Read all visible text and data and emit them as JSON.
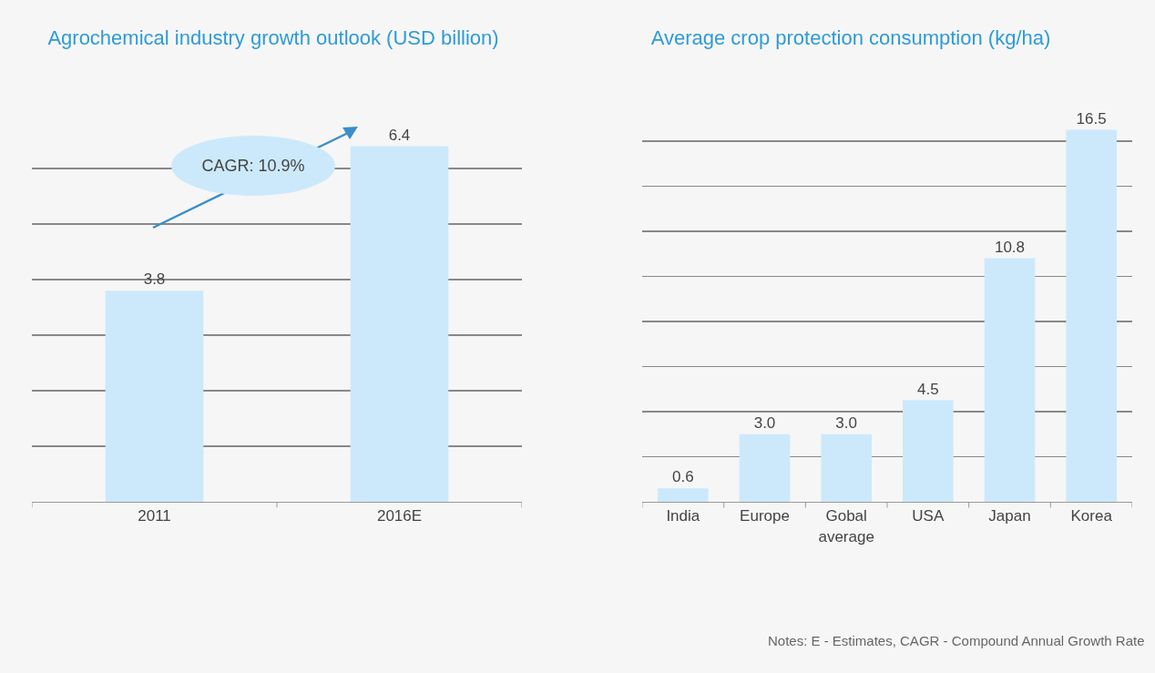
{
  "chart_data": [
    {
      "type": "bar",
      "title": "Agrochemical industry growth outlook (USD billion)",
      "categories": [
        "2011",
        "2016E"
      ],
      "values": [
        3.8,
        6.4
      ],
      "color": "#cce9fb",
      "value_labels": [
        "3.8",
        "6.4"
      ],
      "grid": "y",
      "tick_labels": "x",
      "annotations": [
        "CAGR: 10.9%"
      ]
    },
    {
      "type": "bar",
      "title": "Average crop protection consumption (kg/ha)",
      "categories": [
        "India",
        "Europe",
        "Gobal average",
        "USA",
        "Japan",
        "Korea"
      ],
      "values": [
        0.6,
        3.0,
        3.0,
        4.5,
        10.8,
        16.5
      ],
      "color": "#cce9fb",
      "value_labels": [
        "0.6",
        "3.0",
        "3.0",
        "4.5",
        "10.8",
        "16.5"
      ],
      "grid": "y",
      "tick_labels": "x",
      "annotations": [
        "Notes: E - Estimates, CAGR - Compound Annual Growth Rate"
      ]
    }
  ]
}
